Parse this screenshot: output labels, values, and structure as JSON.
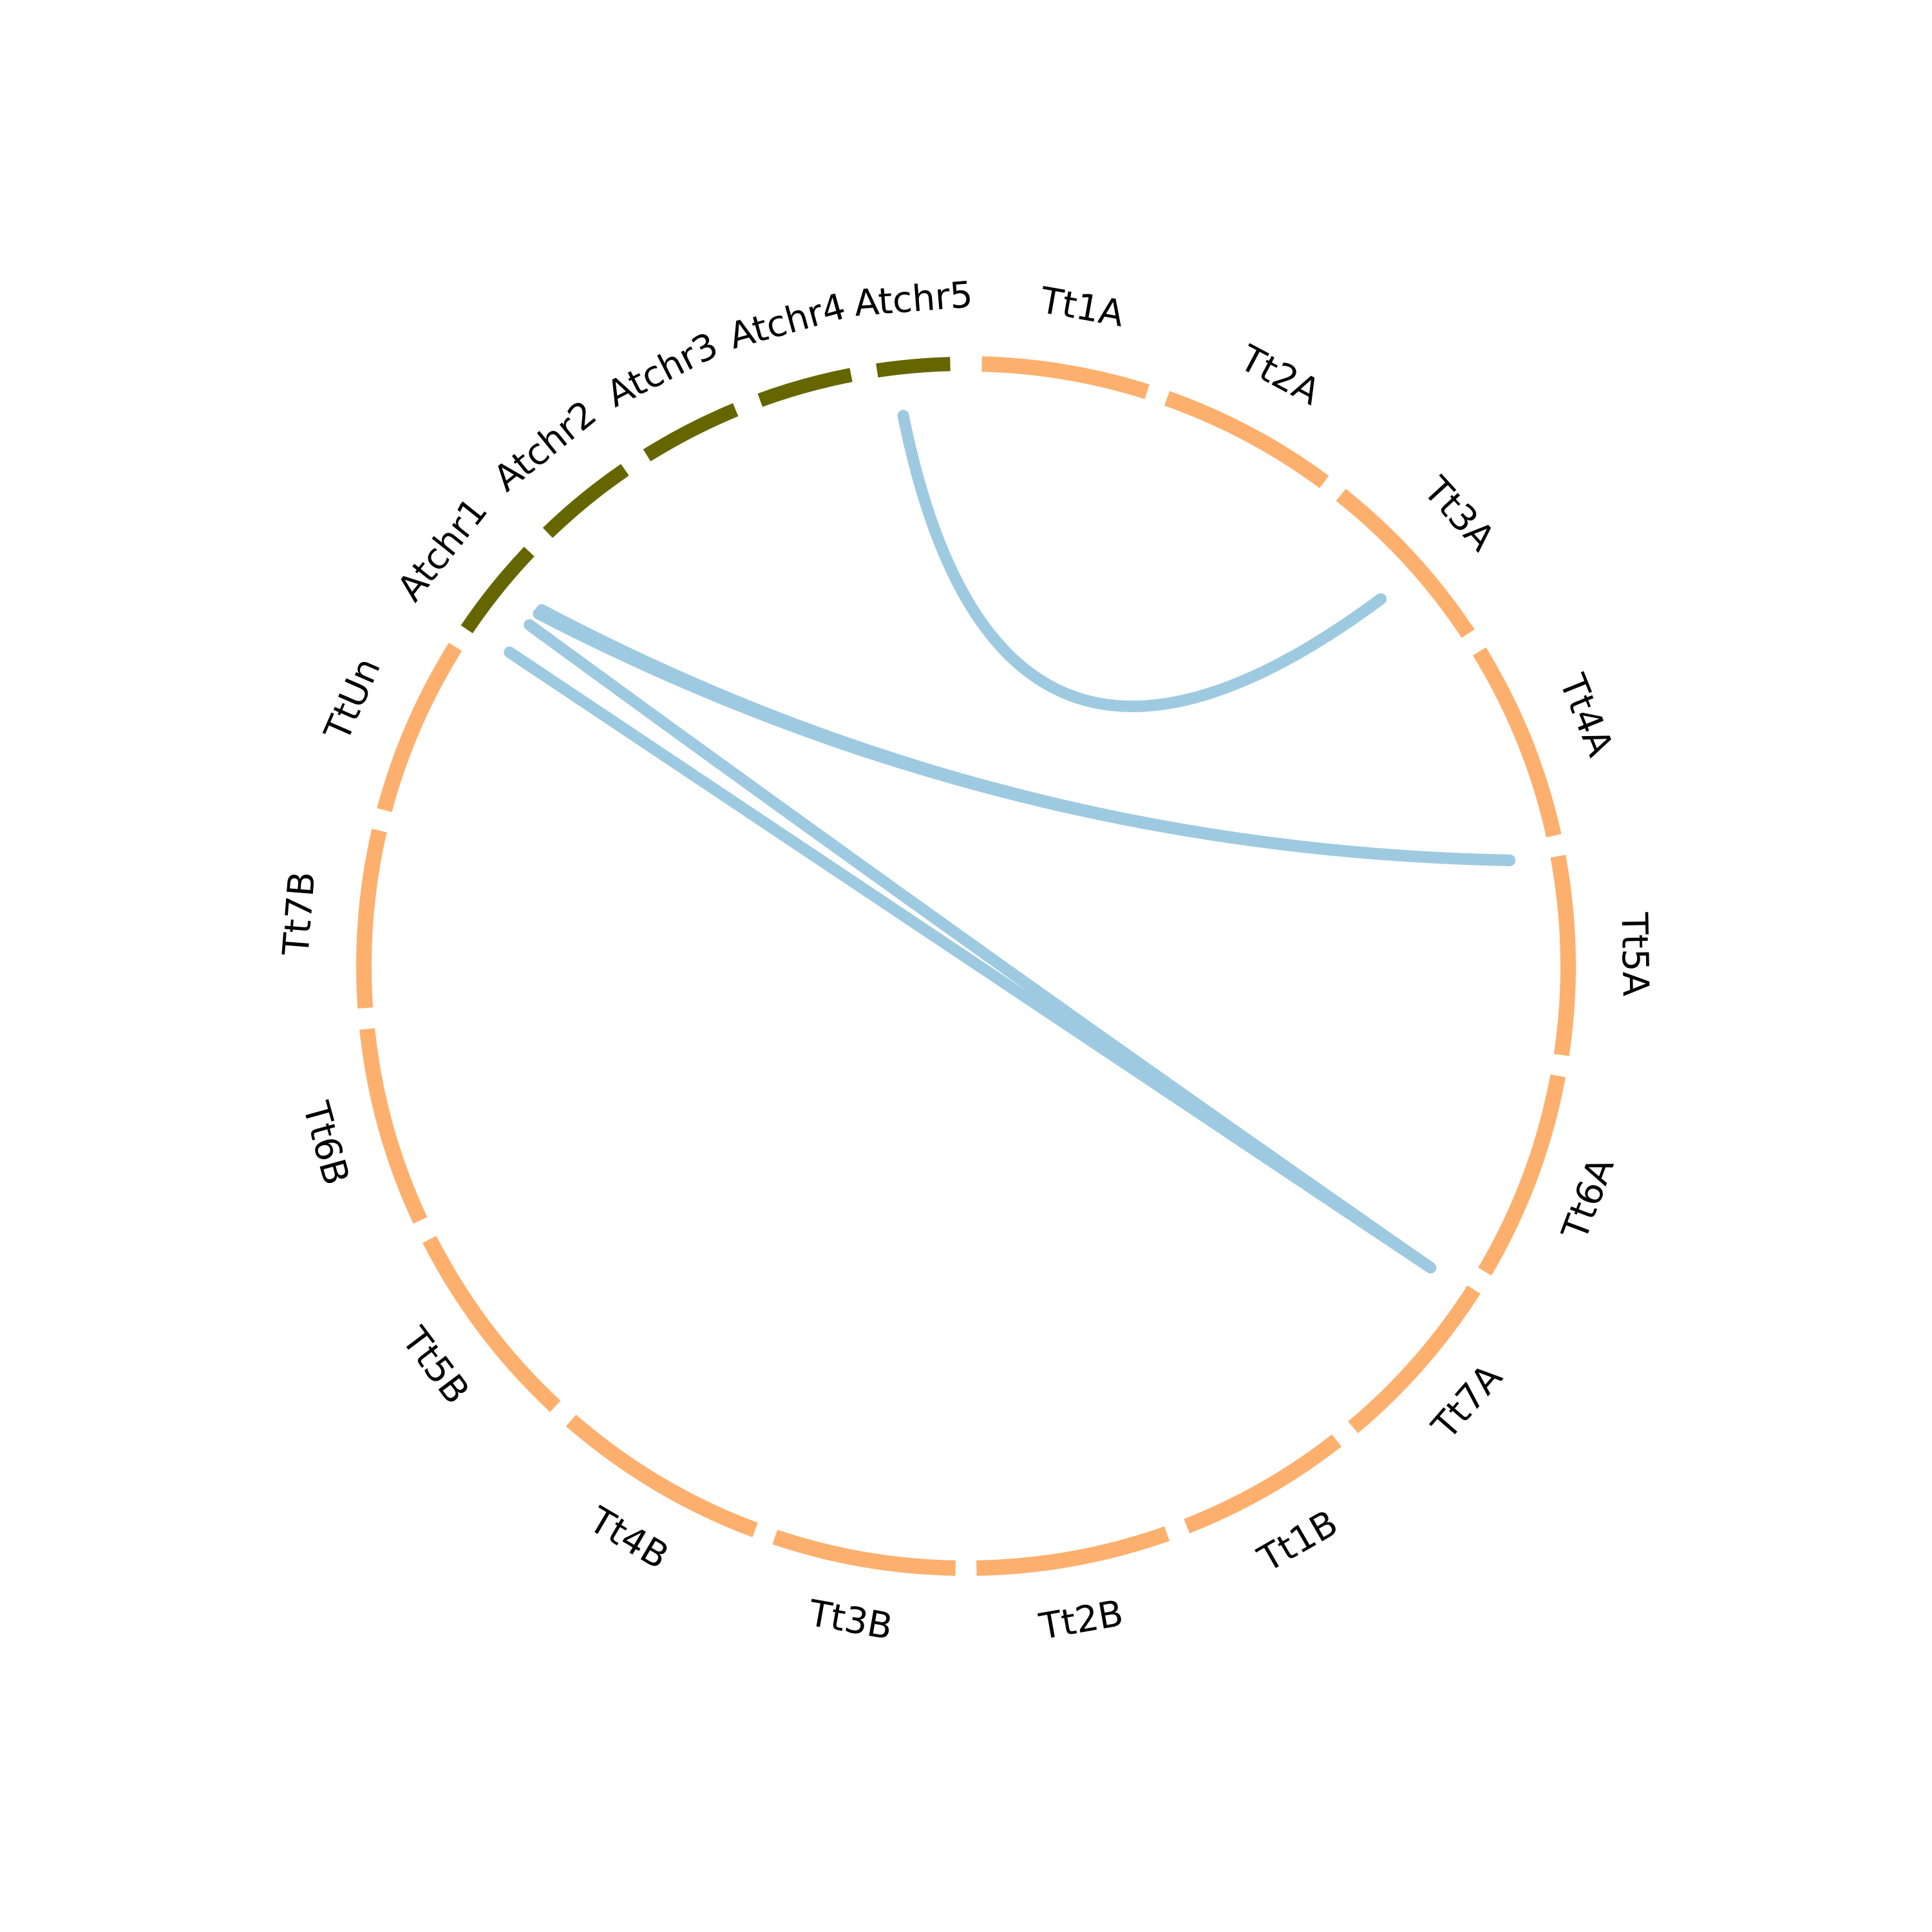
{
  "diagram": {
    "type": "chord",
    "colors": {
      "arabidopsis_segment": "#666600",
      "triticum_segment": "#fdb06e",
      "link": "#9ecae1"
    },
    "chromosomes": [
      {
        "id": "Tt1A",
        "label": "Tt1A",
        "group": "triticum"
      },
      {
        "id": "Tt2A",
        "label": "Tt2A",
        "group": "triticum"
      },
      {
        "id": "Tt3A",
        "label": "Tt3A",
        "group": "triticum"
      },
      {
        "id": "Tt4A",
        "label": "Tt4A",
        "group": "triticum"
      },
      {
        "id": "Tt5A",
        "label": "Tt5A",
        "group": "triticum"
      },
      {
        "id": "Tt6A",
        "label": "Tt6A",
        "group": "triticum"
      },
      {
        "id": "Tt7A",
        "label": "Tt7A",
        "group": "triticum"
      },
      {
        "id": "Tt1B",
        "label": "Tt1B",
        "group": "triticum"
      },
      {
        "id": "Tt2B",
        "label": "Tt2B",
        "group": "triticum"
      },
      {
        "id": "Tt3B",
        "label": "Tt3B",
        "group": "triticum"
      },
      {
        "id": "Tt4B",
        "label": "Tt4B",
        "group": "triticum"
      },
      {
        "id": "Tt5B",
        "label": "Tt5B",
        "group": "triticum"
      },
      {
        "id": "Tt6B",
        "label": "Tt6B",
        "group": "triticum"
      },
      {
        "id": "Tt7B",
        "label": "Tt7B",
        "group": "triticum"
      },
      {
        "id": "TtUn",
        "label": "TtUn",
        "group": "triticum"
      },
      {
        "id": "Atchr1",
        "label": "Atchr1",
        "group": "arabidopsis"
      },
      {
        "id": "Atchr2",
        "label": "Atchr2",
        "group": "arabidopsis"
      },
      {
        "id": "Atchr3",
        "label": "Atchr3",
        "group": "arabidopsis"
      },
      {
        "id": "Atchr4",
        "label": "Atchr4",
        "group": "arabidopsis"
      },
      {
        "id": "Atchr5",
        "label": "Atchr5",
        "group": "arabidopsis"
      }
    ],
    "links": [
      {
        "from": "Atchr5",
        "to": "Tt3A"
      },
      {
        "from": "Atchr1",
        "to": "Tt4A"
      },
      {
        "from": "Atchr1",
        "to": "Tt4A"
      },
      {
        "from": "Atchr1",
        "to": "Tt7A"
      },
      {
        "from": "Atchr1",
        "to": "Tt7A"
      }
    ]
  }
}
